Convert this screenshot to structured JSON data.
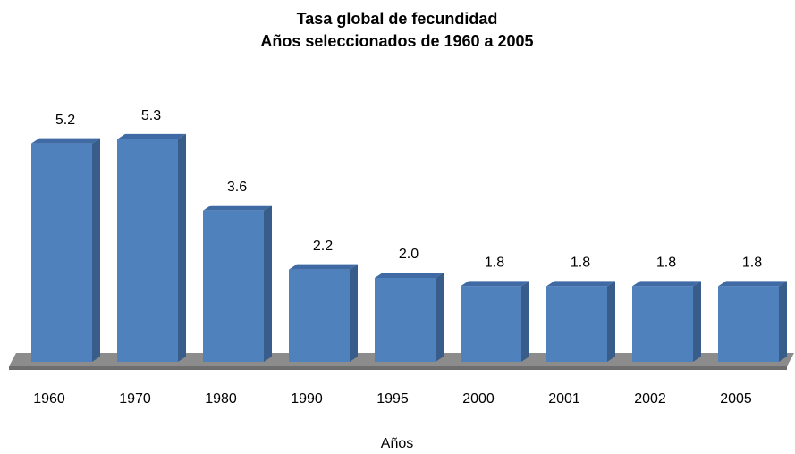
{
  "chart_data": {
    "type": "bar3d",
    "title": "Tasa global de fecundidad",
    "subtitle": "Años seleccionados de 1960 a 2005",
    "x_label": "Años",
    "categories": [
      "1960",
      "1970",
      "1980",
      "1990",
      "1995",
      "2000",
      "2001",
      "2002",
      "2005"
    ],
    "values": [
      5.2,
      5.3,
      3.6,
      2.2,
      2.0,
      1.8,
      1.8,
      1.8,
      1.8
    ],
    "value_labels": [
      "5.2",
      "5.3",
      "3.6",
      "2.2",
      "2.0",
      "1.8",
      "1.8",
      "1.8",
      "1.8"
    ],
    "color": "#4f81bd"
  }
}
